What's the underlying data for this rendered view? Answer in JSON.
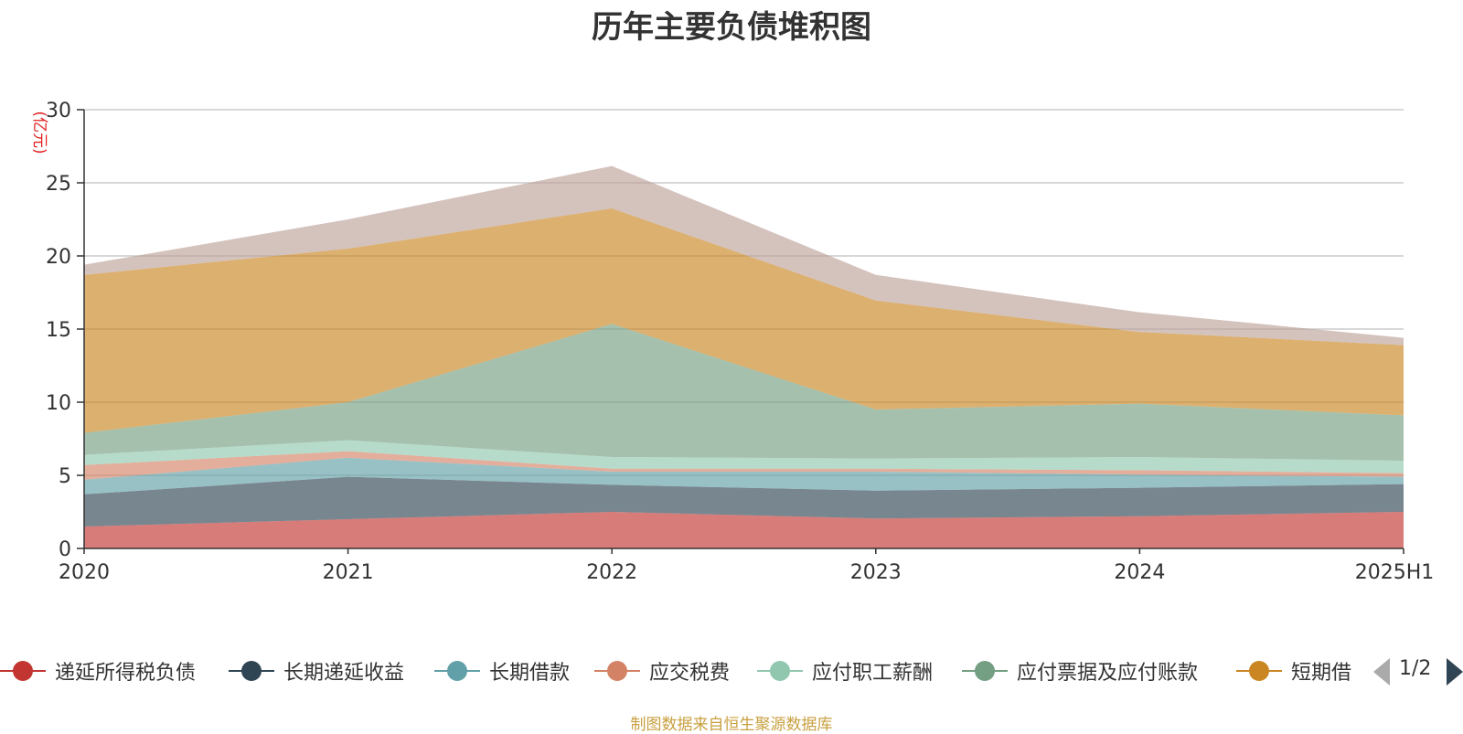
{
  "chart_data": {
    "type": "area",
    "stacked": true,
    "title": "历年主要负债堆积图",
    "ylabel": "(亿元)",
    "xlabel": "",
    "categories": [
      "2020",
      "2021",
      "2022",
      "2023",
      "2024",
      "2025H1"
    ],
    "ylim": [
      0,
      30
    ],
    "yticks": [
      0,
      5,
      10,
      15,
      20,
      25,
      30
    ],
    "grid": true,
    "legend_position": "bottom",
    "series": [
      {
        "name": "递延所得税负债",
        "color": "#c23531",
        "values": [
          1.5,
          2.0,
          2.5,
          2.05,
          2.2,
          2.5
        ]
      },
      {
        "name": "长期递延收益",
        "color": "#2f4554",
        "values": [
          2.2,
          2.9,
          1.85,
          1.9,
          1.95,
          1.9
        ]
      },
      {
        "name": "长期借款",
        "color": "#61a0a8",
        "values": [
          1.0,
          1.3,
          0.9,
          1.3,
          0.9,
          0.5
        ]
      },
      {
        "name": "应交税费",
        "color": "#d48265",
        "values": [
          1.0,
          0.45,
          0.2,
          0.2,
          0.3,
          0.25
        ]
      },
      {
        "name": "应付职工薪酬",
        "color": "#91c7ae",
        "values": [
          0.7,
          0.75,
          0.8,
          0.7,
          0.9,
          0.85
        ]
      },
      {
        "name": "应付票据及应付账款",
        "color": "#749f83",
        "values": [
          1.5,
          2.6,
          9.1,
          3.35,
          3.65,
          3.1
        ]
      },
      {
        "name": "短期借款",
        "color": "#ca8622",
        "values": [
          10.8,
          10.5,
          7.9,
          7.45,
          4.9,
          4.8
        ]
      },
      {
        "name": "",
        "color": "#bda29a",
        "values": [
          0.7,
          2.0,
          2.9,
          1.75,
          1.35,
          0.5
        ]
      }
    ]
  },
  "legend_items": [
    {
      "label": "递延所得税负债",
      "color": "#c23531"
    },
    {
      "label": "长期递延收益",
      "color": "#2f4554"
    },
    {
      "label": "长期借款",
      "color": "#61a0a8"
    },
    {
      "label": "应交税费",
      "color": "#d48265"
    },
    {
      "label": "应付职工薪酬",
      "color": "#91c7ae"
    },
    {
      "label": "应付票据及应付账款",
      "color": "#749f83"
    },
    {
      "label": "短期借",
      "color": "#ca8622"
    }
  ],
  "pager": {
    "text": "1/2"
  },
  "source_note": "制图数据来自恒生聚源数据库"
}
